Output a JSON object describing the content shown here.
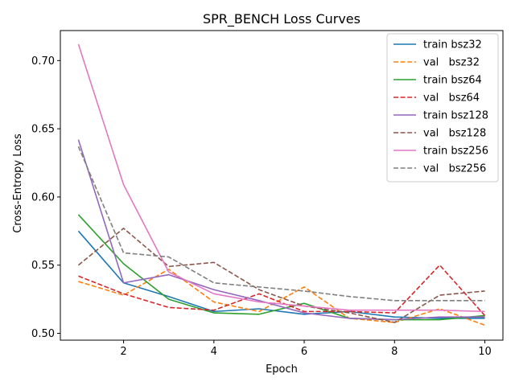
{
  "chart_data": {
    "type": "line",
    "title": "SPR_BENCH Loss Curves",
    "xlabel": "Epoch",
    "ylabel": "Cross-Entropy Loss",
    "xlim": [
      0.6,
      10.4
    ],
    "ylim": [
      0.495,
      0.722
    ],
    "xticks": [
      2,
      4,
      6,
      8,
      10
    ],
    "yticks": [
      0.5,
      0.55,
      0.6,
      0.65,
      0.7
    ],
    "ytick_labels": [
      "0.50",
      "0.55",
      "0.60",
      "0.65",
      "0.70"
    ],
    "grid": false,
    "legend_position": "top-right",
    "x": [
      1,
      2,
      3,
      4,
      5,
      6,
      7,
      8,
      9,
      10
    ],
    "series": [
      {
        "name": "train bsz32",
        "color": "#1f77b4",
        "dash": "solid",
        "values": [
          0.575,
          0.537,
          0.527,
          0.516,
          0.518,
          0.514,
          0.516,
          0.512,
          0.511,
          0.511
        ]
      },
      {
        "name": "val   bsz32",
        "color": "#ff7f0e",
        "dash": "dashed",
        "values": [
          0.538,
          0.528,
          0.547,
          0.523,
          0.516,
          0.534,
          0.511,
          0.508,
          0.518,
          0.506
        ]
      },
      {
        "name": "train bsz64",
        "color": "#2ca02c",
        "dash": "solid",
        "values": [
          0.587,
          0.551,
          0.525,
          0.515,
          0.514,
          0.522,
          0.511,
          0.51,
          0.51,
          0.513
        ]
      },
      {
        "name": "val   bsz64",
        "color": "#d62728",
        "dash": "dashed",
        "values": [
          0.542,
          0.529,
          0.519,
          0.517,
          0.529,
          0.516,
          0.516,
          0.515,
          0.55,
          0.513
        ]
      },
      {
        "name": "train bsz128",
        "color": "#9467bd",
        "dash": "solid",
        "values": [
          0.642,
          0.537,
          0.543,
          0.532,
          0.524,
          0.515,
          0.511,
          0.51,
          0.512,
          0.512
        ]
      },
      {
        "name": "val   bsz128",
        "color": "#8c564b",
        "dash": "dashed",
        "values": [
          0.55,
          0.577,
          0.549,
          0.552,
          0.532,
          0.52,
          0.515,
          0.508,
          0.528,
          0.531
        ]
      },
      {
        "name": "train bsz256",
        "color": "#e377c2",
        "dash": "solid",
        "values": [
          0.712,
          0.609,
          0.545,
          0.529,
          0.523,
          0.52,
          0.517,
          0.517,
          0.517,
          0.516
        ]
      },
      {
        "name": "val   bsz256",
        "color": "#7f7f7f",
        "dash": "dashed",
        "values": [
          0.637,
          0.559,
          0.556,
          0.537,
          0.534,
          0.531,
          0.527,
          0.524,
          0.524,
          0.524
        ]
      }
    ]
  }
}
